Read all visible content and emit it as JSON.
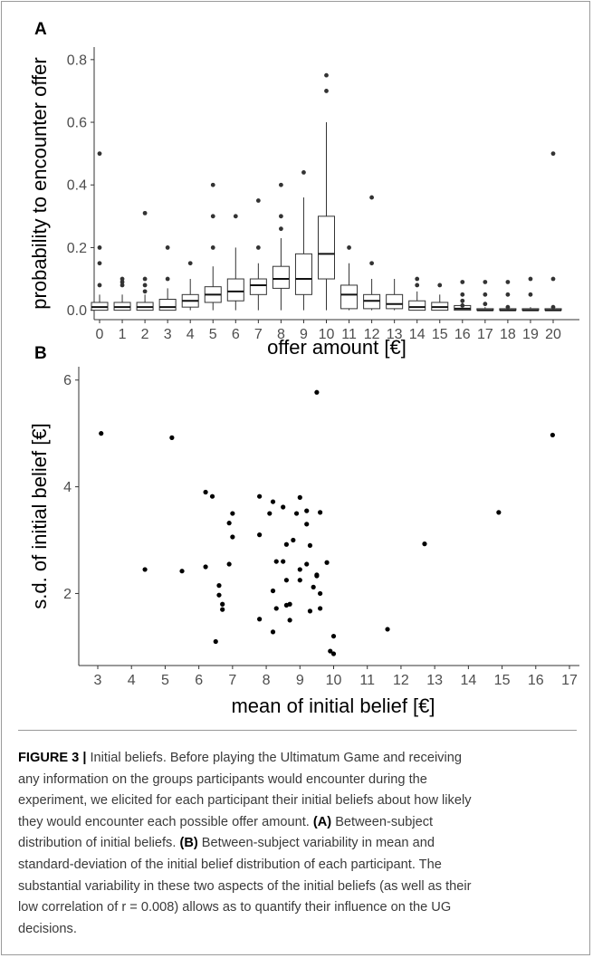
{
  "panels": {
    "a_letter": "A",
    "b_letter": "B"
  },
  "chart_data": [
    {
      "type": "box",
      "panel": "A",
      "title": "",
      "xlabel": "offer amount [€]",
      "ylabel": "probability to encounter offer",
      "ylim": [
        -0.03,
        0.84
      ],
      "yticks": [
        0.0,
        0.2,
        0.4,
        0.6,
        0.8
      ],
      "ytick_labels": [
        "0.0",
        "0.2",
        "0.4",
        "0.6",
        "0.8"
      ],
      "categories": [
        "0",
        "1",
        "2",
        "3",
        "4",
        "5",
        "6",
        "7",
        "8",
        "9",
        "10",
        "11",
        "12",
        "13",
        "14",
        "15",
        "16",
        "17",
        "18",
        "19",
        "20"
      ],
      "boxes": [
        {
          "q1": 0.0,
          "median": 0.01,
          "q3": 0.025,
          "whisker_low": 0.0,
          "whisker_high": 0.05,
          "outliers": [
            0.5,
            0.2,
            0.15,
            0.08
          ]
        },
        {
          "q1": 0.0,
          "median": 0.01,
          "q3": 0.025,
          "whisker_low": 0.0,
          "whisker_high": 0.05,
          "outliers": [
            0.1,
            0.09,
            0.08
          ]
        },
        {
          "q1": 0.0,
          "median": 0.01,
          "q3": 0.025,
          "whisker_low": 0.0,
          "whisker_high": 0.05,
          "outliers": [
            0.31,
            0.1,
            0.08,
            0.06
          ]
        },
        {
          "q1": 0.0,
          "median": 0.01,
          "q3": 0.035,
          "whisker_low": 0.0,
          "whisker_high": 0.07,
          "outliers": [
            0.2,
            0.1
          ]
        },
        {
          "q1": 0.01,
          "median": 0.03,
          "q3": 0.05,
          "whisker_low": 0.0,
          "whisker_high": 0.1,
          "outliers": [
            0.15
          ]
        },
        {
          "q1": 0.025,
          "median": 0.05,
          "q3": 0.075,
          "whisker_low": 0.0,
          "whisker_high": 0.14,
          "outliers": [
            0.4,
            0.3,
            0.2
          ]
        },
        {
          "q1": 0.03,
          "median": 0.06,
          "q3": 0.1,
          "whisker_low": 0.0,
          "whisker_high": 0.2,
          "outliers": [
            0.3
          ]
        },
        {
          "q1": 0.05,
          "median": 0.08,
          "q3": 0.1,
          "whisker_low": 0.0,
          "whisker_high": 0.15,
          "outliers": [
            0.35,
            0.2
          ]
        },
        {
          "q1": 0.07,
          "median": 0.1,
          "q3": 0.14,
          "whisker_low": 0.0,
          "whisker_high": 0.23,
          "outliers": [
            0.4,
            0.3,
            0.26
          ]
        },
        {
          "q1": 0.05,
          "median": 0.1,
          "q3": 0.18,
          "whisker_low": 0.0,
          "whisker_high": 0.36,
          "outliers": [
            0.44
          ]
        },
        {
          "q1": 0.1,
          "median": 0.18,
          "q3": 0.3,
          "whisker_low": 0.0,
          "whisker_high": 0.6,
          "outliers": [
            0.75,
            0.7
          ]
        },
        {
          "q1": 0.005,
          "median": 0.05,
          "q3": 0.08,
          "whisker_low": 0.0,
          "whisker_high": 0.15,
          "outliers": [
            0.2
          ]
        },
        {
          "q1": 0.005,
          "median": 0.03,
          "q3": 0.05,
          "whisker_low": 0.0,
          "whisker_high": 0.1,
          "outliers": [
            0.36,
            0.15
          ]
        },
        {
          "q1": 0.005,
          "median": 0.02,
          "q3": 0.05,
          "whisker_low": 0.0,
          "whisker_high": 0.1,
          "outliers": []
        },
        {
          "q1": 0.0,
          "median": 0.01,
          "q3": 0.03,
          "whisker_low": 0.0,
          "whisker_high": 0.06,
          "outliers": [
            0.1,
            0.08
          ]
        },
        {
          "q1": 0.0,
          "median": 0.01,
          "q3": 0.025,
          "whisker_low": 0.0,
          "whisker_high": 0.05,
          "outliers": [
            0.08
          ]
        },
        {
          "q1": 0.0,
          "median": 0.005,
          "q3": 0.015,
          "whisker_low": 0.0,
          "whisker_high": 0.03,
          "outliers": [
            0.09,
            0.05,
            0.03,
            0.015
          ]
        },
        {
          "q1": 0.0,
          "median": 0.0,
          "q3": 0.005,
          "whisker_low": 0.0,
          "whisker_high": 0.01,
          "outliers": [
            0.09,
            0.05,
            0.02
          ]
        },
        {
          "q1": 0.0,
          "median": 0.0,
          "q3": 0.005,
          "whisker_low": 0.0,
          "whisker_high": 0.01,
          "outliers": [
            0.09,
            0.05,
            0.01
          ]
        },
        {
          "q1": 0.0,
          "median": 0.0,
          "q3": 0.005,
          "whisker_low": 0.0,
          "whisker_high": 0.01,
          "outliers": [
            0.1,
            0.05
          ]
        },
        {
          "q1": 0.0,
          "median": 0.0,
          "q3": 0.005,
          "whisker_low": 0.0,
          "whisker_high": 0.01,
          "outliers": [
            0.5,
            0.1,
            0.01
          ]
        }
      ]
    },
    {
      "type": "scatter",
      "panel": "B",
      "title": "",
      "xlabel": "mean of initial belief [€]",
      "ylabel": "s.d. of initial belief [€]",
      "xlim": [
        2.5,
        17.3
      ],
      "ylim": [
        0.65,
        6.25
      ],
      "xticks": [
        3,
        4,
        5,
        6,
        7,
        8,
        9,
        10,
        11,
        12,
        13,
        14,
        15,
        16,
        17
      ],
      "xtick_labels": [
        "3",
        "4",
        "5",
        "6",
        "7",
        "8",
        "9",
        "10",
        "11",
        "12",
        "13",
        "14",
        "15",
        "16",
        "17"
      ],
      "yticks": [
        2,
        4,
        6
      ],
      "ytick_labels": [
        "2",
        "4",
        "6"
      ],
      "x": [
        3.1,
        5.2,
        9.5,
        16.5,
        4.4,
        5.5,
        6.2,
        6.4,
        6.6,
        6.7,
        6.7,
        6.6,
        6.5,
        6.2,
        6.9,
        7.0,
        7.0,
        6.9,
        7.8,
        7.8,
        7.8,
        8.1,
        8.2,
        8.3,
        8.2,
        8.3,
        8.2,
        8.5,
        8.5,
        8.6,
        8.7,
        8.6,
        8.7,
        8.6,
        8.8,
        8.9,
        9.0,
        9.0,
        9.0,
        9.2,
        9.2,
        9.3,
        9.3,
        9.2,
        9.4,
        9.5,
        9.6,
        9.6,
        9.5,
        9.6,
        9.8,
        9.9,
        10.0,
        10.0,
        11.6,
        12.7,
        14.9
      ],
      "y": [
        5.0,
        4.92,
        5.77,
        4.97,
        2.45,
        2.42,
        2.5,
        3.82,
        2.15,
        1.8,
        1.7,
        1.97,
        1.1,
        3.9,
        3.32,
        3.5,
        3.06,
        2.55,
        3.82,
        3.1,
        1.52,
        3.5,
        3.72,
        2.6,
        2.05,
        1.72,
        1.28,
        3.62,
        2.6,
        2.92,
        1.8,
        2.25,
        1.5,
        1.78,
        3.0,
        3.5,
        2.25,
        3.8,
        2.45,
        3.55,
        3.3,
        1.67,
        2.9,
        2.55,
        2.12,
        2.35,
        3.52,
        1.72,
        2.33,
        2.0,
        2.58,
        0.92,
        0.87,
        1.2,
        1.33,
        2.93,
        3.52
      ]
    }
  ],
  "caption": {
    "label": "FIGURE 3 |",
    "line1": " Initial beliefs. Before playing the Ultimatum Game and receiving",
    "line2": "any information on the groups participants would encounter during the",
    "line3": "experiment, we elicited for each participant their initial beliefs about how likely",
    "line4": "they would encounter each possible offer amount. ",
    "line4_ref": "(A)",
    "line4_end": " Between-subject",
    "line5": "distribution of initial beliefs. ",
    "line5_ref": "(B)",
    "line5_end": " Between-subject variability in mean and",
    "line6": "standard-deviation of the initial belief distribution of each participant. The",
    "line7": "substantial variability in these two aspects of the initial beliefs (as well as their",
    "line8": "low correlation of r = 0.008) allows as to quantify their influence on the UG",
    "line9": "decisions."
  }
}
